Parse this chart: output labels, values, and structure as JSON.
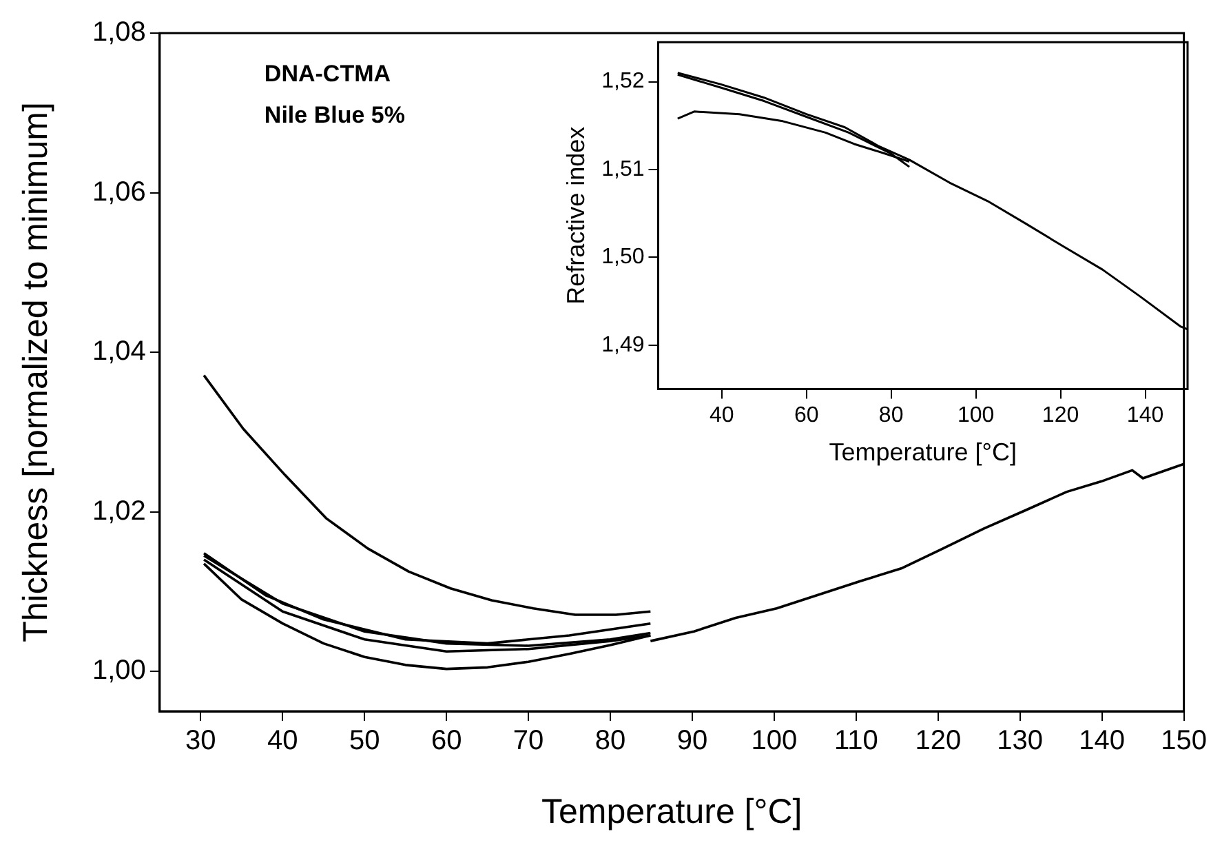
{
  "chart_data": [
    {
      "type": "line",
      "xlabel": "Temperature [°C]",
      "ylabel": "Thickness [normalized to minimum]",
      "annotations": [
        "DNA-CTMA",
        "Nile Blue 5%"
      ],
      "xlim": [
        25,
        150
      ],
      "xticks": [
        30,
        40,
        50,
        60,
        70,
        80,
        90,
        100,
        110,
        120,
        130,
        140,
        150
      ],
      "ylim": [
        0.995,
        1.08
      ],
      "yticks": [
        {
          "value": 1.0,
          "label": "1,00"
        },
        {
          "value": 1.02,
          "label": "1,02"
        },
        {
          "value": 1.04,
          "label": "1,04"
        },
        {
          "value": 1.06,
          "label": "1,06"
        },
        {
          "value": 1.08,
          "label": "1,08"
        }
      ],
      "grid": false,
      "legend": false,
      "marker": "none",
      "line_style": "solid",
      "series": [
        {
          "color": "#000000",
          "x": [
            30.4,
            35.2,
            40.3,
            45.3,
            50.4,
            55.4,
            60.5,
            65.5,
            70.6,
            75.7,
            80.7,
            84.9
          ],
          "values": [
            1.0371,
            1.0304,
            1.0246,
            1.0192,
            1.0154,
            1.0125,
            1.0104,
            1.0089,
            1.0079,
            1.0071,
            1.0071,
            1.0075
          ]
        },
        {
          "color": "#000000",
          "x": [
            84.9,
            75,
            65,
            55,
            45,
            38,
            30.4
          ],
          "values": [
            1.006,
            1.0045,
            1.0035,
            1.004,
            1.0065,
            1.0095,
            1.0148
          ]
        },
        {
          "color": "#000000",
          "x": [
            30.4,
            35,
            40,
            45,
            50,
            55,
            60,
            65,
            70,
            75,
            80,
            84.9
          ],
          "values": [
            1.0135,
            1.009,
            1.006,
            1.0035,
            1.0018,
            1.0008,
            1.0003,
            1.0005,
            1.0012,
            1.0022,
            1.0033,
            1.0045
          ]
        },
        {
          "color": "#000000",
          "x": [
            30.4,
            40,
            50,
            60,
            70,
            80,
            84.9
          ],
          "values": [
            1.014,
            1.0075,
            1.004,
            1.0025,
            1.0028,
            1.0038,
            1.0045
          ]
        },
        {
          "color": "#000000",
          "x": [
            30.4,
            40,
            50,
            60,
            70,
            80,
            84.9
          ],
          "values": [
            1.0145,
            1.0085,
            1.005,
            1.0035,
            1.0032,
            1.004,
            1.0048
          ]
        },
        {
          "color": "#000000",
          "x": [
            84.9,
            90.2,
            95.3,
            100.3,
            105.4,
            110.5,
            115.5,
            120.6,
            125.6,
            130.7,
            135.7,
            139.9,
            143.7,
            145,
            150
          ],
          "values": [
            1.0038,
            1.005,
            1.0067,
            1.0079,
            1.0096,
            1.0113,
            1.0129,
            1.0154,
            1.0179,
            1.0202,
            1.0225,
            1.0238,
            1.0252,
            1.0242,
            1.026
          ]
        }
      ]
    },
    {
      "type": "line",
      "xlabel": "Temperature [°C]",
      "ylabel": "Refractive index",
      "xlim": [
        25,
        150
      ],
      "xticks": [
        40,
        60,
        80,
        100,
        120,
        140
      ],
      "ylim": [
        1.485,
        1.5245
      ],
      "yticks": [
        {
          "value": 1.49,
          "label": "1,49"
        },
        {
          "value": 1.5,
          "label": "1,50"
        },
        {
          "value": 1.51,
          "label": "1,51"
        },
        {
          "value": 1.52,
          "label": "1,52"
        }
      ],
      "grid": false,
      "legend": false,
      "marker": "none",
      "line_style": "solid",
      "series": [
        {
          "color": "#000000",
          "x": [
            29.6,
            39.8,
            49.9,
            60,
            69.1,
            76.9,
            84.3,
            93.8,
            102.8,
            111.9,
            120.8,
            129.9,
            138.9,
            148.4,
            150
          ],
          "values": [
            1.521,
            1.5197,
            1.5182,
            1.5163,
            1.5148,
            1.5127,
            1.5111,
            1.5085,
            1.5064,
            1.5038,
            1.5012,
            1.4986,
            1.4955,
            1.4921,
            1.4918
          ]
        },
        {
          "color": "#000000",
          "x": [
            29.6,
            33.5,
            44.2,
            54.4,
            64.5,
            71.3,
            78,
            84.3
          ],
          "values": [
            1.5158,
            1.5166,
            1.5163,
            1.5155,
            1.5142,
            1.5129,
            1.5119,
            1.5109
          ]
        },
        {
          "color": "#000000",
          "x": [
            29.6,
            40,
            50,
            60,
            70,
            80,
            84.3
          ],
          "values": [
            1.5208,
            1.5193,
            1.5178,
            1.516,
            1.5142,
            1.5118,
            1.5103
          ]
        }
      ]
    }
  ]
}
